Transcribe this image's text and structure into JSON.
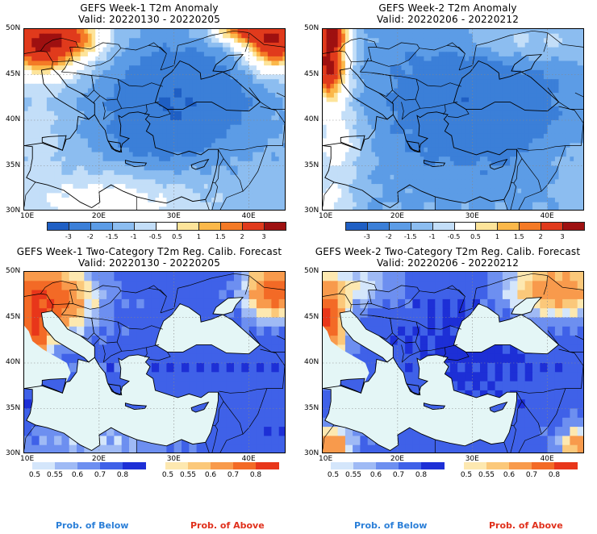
{
  "panels": [
    {
      "title": "GEFS Week-1 T2m Anomaly",
      "valid": "Valid: 20220130 - 20220205",
      "kind": "anomaly",
      "variant": 1
    },
    {
      "title": "GEFS Week-2 T2m Anomaly",
      "valid": "Valid: 20220206 - 20220212",
      "kind": "anomaly",
      "variant": 2
    },
    {
      "title": "GEFS Week-1 Two-Category T2m Reg. Calib. Forecast",
      "valid": "Valid: 20220130 - 20220205",
      "kind": "prob",
      "variant": 1
    },
    {
      "title": "GEFS Week-2 Two-Category T2m Reg. Calib. Forecast",
      "valid": "Valid: 20220206 - 20220212",
      "kind": "prob",
      "variant": 2
    }
  ],
  "axes": {
    "lat_labels": [
      "50N",
      "45N",
      "40N",
      "35N",
      "30N"
    ],
    "lon_labels": [
      "10E",
      "20E",
      "30E",
      "40E"
    ],
    "lat_values": [
      50,
      45,
      40,
      35,
      30
    ],
    "lon_values": [
      10,
      20,
      30,
      40
    ],
    "lat_range": [
      30,
      50
    ],
    "lon_range": [
      10,
      45
    ]
  },
  "anomaly_colorbar": {
    "labels": [
      "-3",
      "-2",
      "-1.5",
      "-1",
      "-0.5",
      "0.5",
      "1",
      "1.5",
      "2",
      "3"
    ],
    "colors": [
      "#1f5fc4",
      "#3b7fd8",
      "#5c9ce6",
      "#8cbdf0",
      "#c3def8",
      "#ffffff",
      "#fde49a",
      "#fbb84a",
      "#f47a26",
      "#e03a1c",
      "#9e1010"
    ]
  },
  "prob_below": {
    "label": "Prob. of Below",
    "ticks": [
      "0.5",
      "0.55",
      "0.6",
      "0.7",
      "0.8"
    ],
    "colors": [
      "#d4e6fb",
      "#9fbaf5",
      "#6d8ff0",
      "#3f61e8",
      "#1d2fd6"
    ],
    "label_color": "#2b7fd8"
  },
  "prob_above": {
    "label": "Prob. of Above",
    "ticks": [
      "0.5",
      "0.55",
      "0.6",
      "0.7",
      "0.8"
    ],
    "colors": [
      "#fde8b0",
      "#fbc87a",
      "#f89a4c",
      "#f36a26",
      "#e8361a"
    ],
    "label_color": "#e0301c"
  }
}
